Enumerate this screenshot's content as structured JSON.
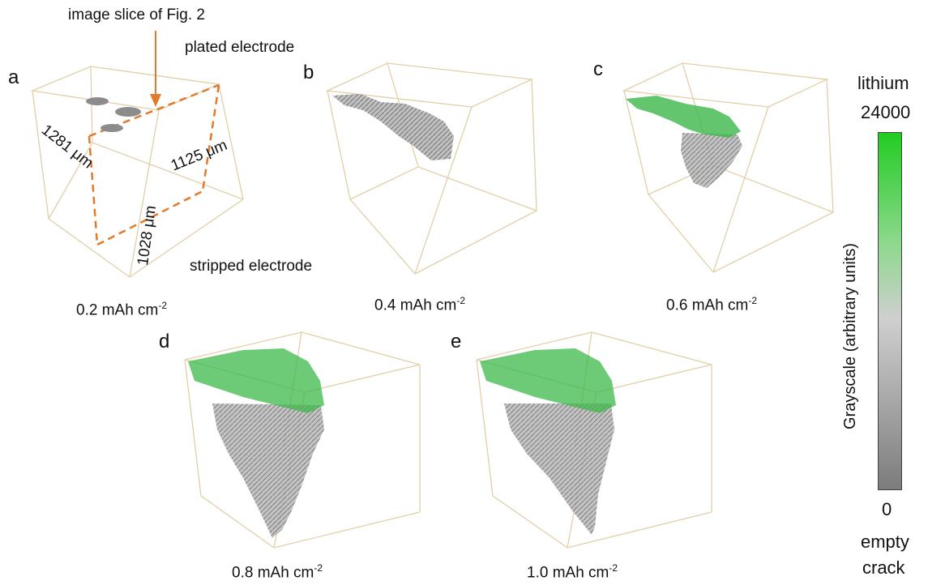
{
  "annotations": {
    "image_slice": "image slice of Fig. 2",
    "plated": "plated electrode",
    "stripped": "stripped electrode",
    "dim_1281": "1281 μm",
    "dim_1125": "1125 μm",
    "dim_1028": "1028 μm"
  },
  "panels": [
    {
      "letter": "a",
      "caption_main": "0.2 mAh cm",
      "caption_sup": "-2"
    },
    {
      "letter": "b",
      "caption_main": "0.4 mAh cm",
      "caption_sup": "-2"
    },
    {
      "letter": "c",
      "caption_main": "0.6 mAh cm",
      "caption_sup": "-2"
    },
    {
      "letter": "d",
      "caption_main": "0.8 mAh cm",
      "caption_sup": "-2"
    },
    {
      "letter": "e",
      "caption_main": "1.0 mAh cm",
      "caption_sup": "-2"
    }
  ],
  "colorbar": {
    "top_label": "lithium",
    "max_value": "24000",
    "min_value": "0",
    "bottom_label_1": "empty",
    "bottom_label_2": "crack",
    "axis_title": "Grayscale (arbitrary units)",
    "colors": {
      "high": "#22cc22",
      "mid": "#cfcfcf",
      "low": "#7c7c7c"
    }
  },
  "colors": {
    "box_edge": "#e2cfa6",
    "slice_line": "#e07a2c",
    "gray_feature": "#8c8c8c",
    "green_feature": "#3cb84a"
  }
}
